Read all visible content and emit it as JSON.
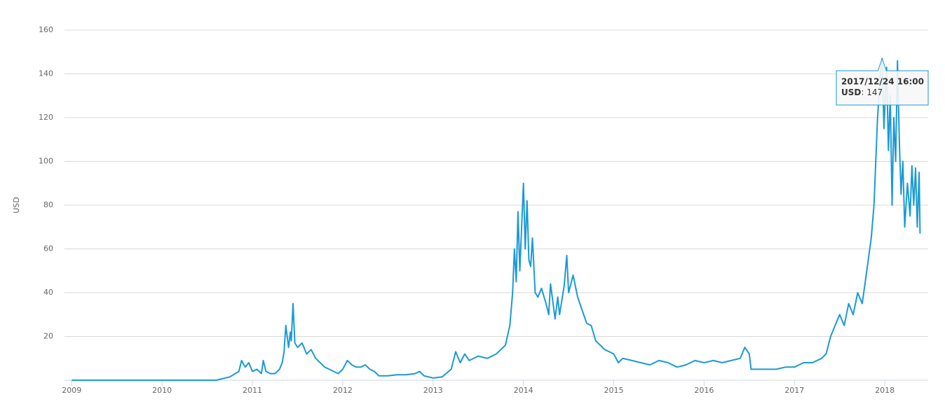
{
  "chart_data": {
    "type": "line",
    "y_label": "USD",
    "xlim": [
      2008.92,
      2018.48
    ],
    "xticks": [
      2009,
      2010,
      2011,
      2012,
      2013,
      2014,
      2015,
      2016,
      2017,
      2018
    ],
    "ylim": [
      0,
      160
    ],
    "yticks": [
      20,
      40,
      60,
      80,
      100,
      120,
      140,
      160
    ],
    "grid": true,
    "x": [
      2009.0,
      2010.6,
      2010.75,
      2010.85,
      2010.88,
      2010.92,
      2010.96,
      2011.0,
      2011.05,
      2011.1,
      2011.12,
      2011.15,
      2011.2,
      2011.25,
      2011.3,
      2011.33,
      2011.35,
      2011.37,
      2011.4,
      2011.42,
      2011.43,
      2011.45,
      2011.47,
      2011.5,
      2011.55,
      2011.6,
      2011.65,
      2011.7,
      2011.75,
      2011.8,
      2011.85,
      2011.9,
      2011.95,
      2012.0,
      2012.05,
      2012.1,
      2012.15,
      2012.2,
      2012.25,
      2012.3,
      2012.35,
      2012.4,
      2012.5,
      2012.6,
      2012.7,
      2012.8,
      2012.85,
      2012.9,
      2013.0,
      2013.1,
      2013.2,
      2013.25,
      2013.3,
      2013.35,
      2013.4,
      2013.5,
      2013.6,
      2013.7,
      2013.75,
      2013.8,
      2013.85,
      2013.88,
      2013.9,
      2013.92,
      2013.94,
      2013.96,
      2013.98,
      2014.0,
      2014.02,
      2014.04,
      2014.06,
      2014.08,
      2014.1,
      2014.13,
      2014.16,
      2014.2,
      2014.25,
      2014.28,
      2014.3,
      2014.35,
      2014.38,
      2014.4,
      2014.45,
      2014.48,
      2014.5,
      2014.55,
      2014.6,
      2014.65,
      2014.7,
      2014.75,
      2014.8,
      2014.85,
      2014.9,
      2014.95,
      2015.0,
      2015.05,
      2015.1,
      2015.2,
      2015.3,
      2015.4,
      2015.5,
      2015.6,
      2015.7,
      2015.8,
      2015.9,
      2016.0,
      2016.1,
      2016.2,
      2016.3,
      2016.4,
      2016.45,
      2016.5,
      2016.52,
      2016.6,
      2016.7,
      2016.8,
      2016.9,
      2017.0,
      2017.1,
      2017.2,
      2017.3,
      2017.35,
      2017.4,
      2017.45,
      2017.5,
      2017.55,
      2017.6,
      2017.65,
      2017.7,
      2017.75,
      2017.8,
      2017.85,
      2017.88,
      2017.92,
      2017.95,
      2017.97,
      2017.99,
      2018.02,
      2018.04,
      2018.06,
      2018.08,
      2018.1,
      2018.12,
      2018.14,
      2018.16,
      2018.18,
      2018.2,
      2018.22,
      2018.25,
      2018.28,
      2018.3,
      2018.32,
      2018.34,
      2018.36,
      2018.38,
      2018.39
    ],
    "series": [
      {
        "name": "USD",
        "color": "#1a9ad6",
        "values": [
          0,
          0,
          1.5,
          4,
          9,
          6,
          8,
          4,
          5,
          3,
          9,
          4,
          3,
          3,
          5,
          8,
          13,
          25,
          15,
          22,
          18,
          35,
          17,
          15,
          17,
          12,
          14,
          10,
          8,
          6,
          5,
          4,
          3,
          5,
          9,
          7,
          6,
          6,
          7,
          5,
          4,
          2,
          2,
          2.5,
          2.5,
          3,
          4,
          2,
          1,
          1.5,
          5,
          13,
          8,
          12,
          9,
          11,
          10,
          12,
          14,
          16,
          25,
          40,
          60,
          45,
          77,
          50,
          70,
          90,
          60,
          82,
          55,
          52,
          65,
          40,
          38,
          42,
          35,
          30,
          44,
          28,
          38,
          30,
          43,
          57,
          40,
          48,
          38,
          32,
          26,
          25,
          18,
          16,
          14,
          13,
          12,
          8,
          10,
          9,
          8,
          7,
          9,
          8,
          6,
          7,
          9,
          8,
          9,
          8,
          9,
          10,
          15,
          12,
          5,
          5,
          5,
          5,
          6,
          6,
          8,
          8,
          10,
          12,
          20,
          25,
          30,
          25,
          35,
          30,
          40,
          35,
          50,
          65,
          80,
          120,
          140,
          147,
          115,
          143,
          105,
          130,
          80,
          120,
          100,
          146,
          110,
          85,
          100,
          70,
          90,
          75,
          98,
          80,
          97,
          70,
          95,
          67
        ]
      }
    ],
    "tooltip": {
      "x": 2017.97,
      "title": "2017/12/24 16:00",
      "series": "USD",
      "value": 147
    }
  }
}
